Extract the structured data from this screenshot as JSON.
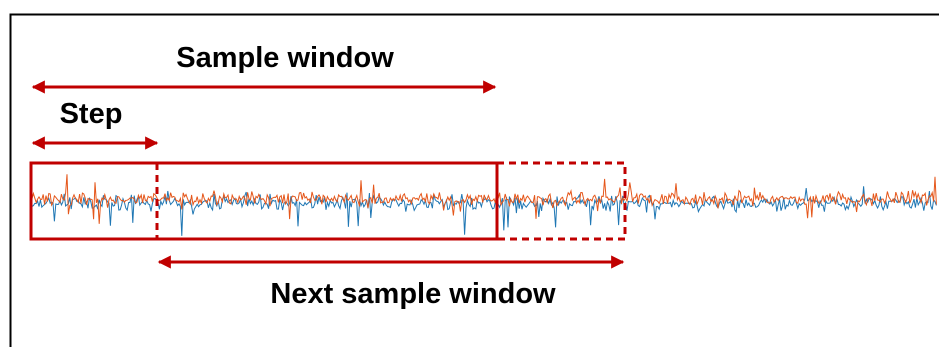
{
  "labels": {
    "sample_window": "Sample window",
    "step": "Step",
    "next_sample_window": "Next sample window"
  },
  "colors": {
    "frame": "#000000",
    "annotation": "#c00000",
    "signal_blue": "#1f77b4",
    "signal_orange": "#e5571b"
  }
}
